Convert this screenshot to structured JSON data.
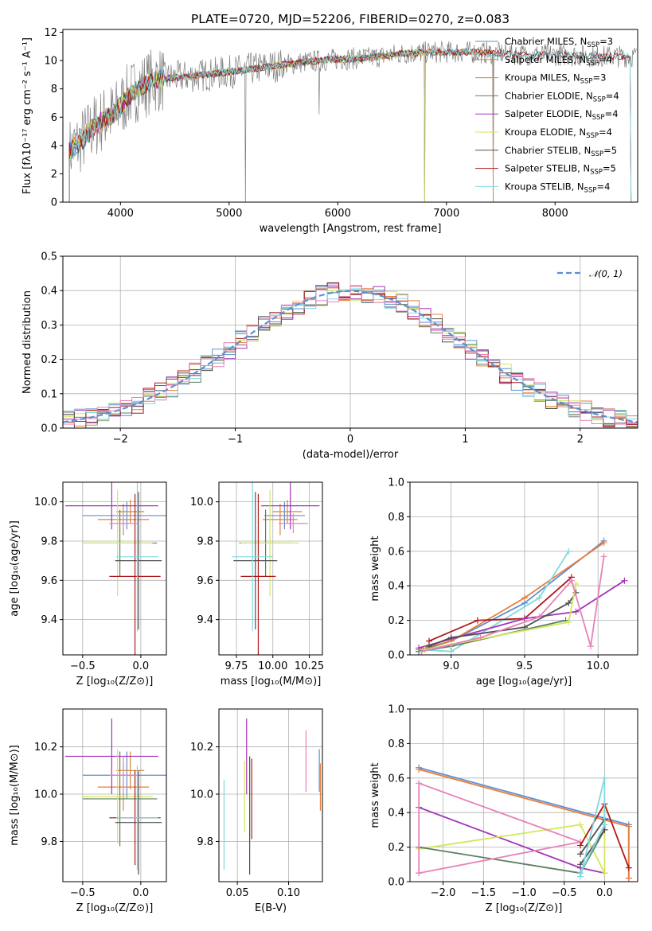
{
  "title": "PLATE=0720, MJD=52206, FIBERID=0270, z=0.083",
  "chart_data": [
    {
      "id": "spectrum",
      "type": "line",
      "title": "PLATE=0720, MJD=52206, FIBERID=0270, z=0.083",
      "xlabel": "wavelength [Angstrom, rest frame]",
      "ylabel": "Flux [fλ10⁻¹⁷ erg cm⁻² s⁻¹ A⁻¹]",
      "xlim": [
        3470,
        8760
      ],
      "ylim": [
        0,
        12.2
      ],
      "xticks": [
        4000,
        5000,
        6000,
        7000,
        8000
      ],
      "yticks": [
        0,
        2,
        4,
        6,
        8,
        10,
        12
      ],
      "grid": false,
      "legend_position": "upper right",
      "data_color": "#808080",
      "continuum": [
        [
          3530,
          3.6
        ],
        [
          3650,
          4.4
        ],
        [
          3750,
          5.3
        ],
        [
          3850,
          5.9
        ],
        [
          3950,
          6.3
        ],
        [
          4050,
          7.3
        ],
        [
          4150,
          8.0
        ],
        [
          4300,
          8.6
        ],
        [
          4500,
          8.8
        ],
        [
          4800,
          9.0
        ],
        [
          5100,
          9.3
        ],
        [
          5400,
          9.6
        ],
        [
          5700,
          9.9
        ],
        [
          6000,
          10.1
        ],
        [
          6300,
          10.2
        ],
        [
          6600,
          10.5
        ],
        [
          6900,
          10.6
        ],
        [
          7200,
          10.6
        ],
        [
          7500,
          10.5
        ],
        [
          7800,
          10.4
        ],
        [
          8100,
          10.4
        ],
        [
          8400,
          10.3
        ]
      ],
      "series": [
        {
          "name": "Chabrier MILES, N$_{SSP}$=3",
          "label_main": "Chabrier MILES, N",
          "label_sub": "SSP",
          "label_tail": "=3",
          "color": "#5f8dd3",
          "end": 7430
        },
        {
          "name": "Salpeter MILES, N$_{SSP}$=4",
          "label_main": "Salpeter MILES, N",
          "label_sub": "SSP",
          "label_tail": "=4",
          "color": "#e87e3c",
          "end": 7430
        },
        {
          "name": "Kroupa MILES, N$_{SSP}$=3",
          "label_main": "Kroupa MILES, N",
          "label_sub": "SSP",
          "label_tail": "=3",
          "color": "#d0883a",
          "end": 7430
        },
        {
          "name": "Chabrier ELODIE, N$_{SSP}$=4",
          "label_main": "Chabrier ELODIE, N",
          "label_sub": "SSP",
          "label_tail": "=4",
          "color": "#5e8060",
          "end": 6800
        },
        {
          "name": "Salpeter ELODIE, N$_{SSP}$=4",
          "label_main": "Salpeter ELODIE, N",
          "label_sub": "SSP",
          "label_tail": "=4",
          "color": "#a333b8",
          "end": 6800
        },
        {
          "name": "Kroupa ELODIE, N$_{SSP}$=4",
          "label_main": "Kroupa ELODIE, N",
          "label_sub": "SSP",
          "label_tail": "=4",
          "color": "#d2e85a",
          "end": 6800
        },
        {
          "name": "Chabrier STELIB, N$_{SSP}$=5",
          "label_main": "Chabrier STELIB, N",
          "label_sub": "SSP",
          "label_tail": "=5",
          "color": "#505050",
          "end": 8700
        },
        {
          "name": "Salpeter STELIB, N$_{SSP}$=5",
          "label_main": "Salpeter STELIB, N",
          "label_sub": "SSP",
          "label_tail": "=5",
          "color": "#b01818",
          "end": 8700
        },
        {
          "name": "Kroupa STELIB, N$_{SSP}$=4",
          "label_main": "Kroupa STELIB, N",
          "label_sub": "SSP",
          "label_tail": "=4",
          "color": "#7fd8df",
          "end": 8700
        }
      ]
    },
    {
      "id": "residuals",
      "type": "line",
      "xlabel": "(data-model)/error",
      "ylabel": "Normed distribution",
      "xlim": [
        -2.5,
        2.5
      ],
      "ylim": [
        0,
        0.5
      ],
      "xticks": [
        -2,
        -1,
        0,
        1,
        2
      ],
      "yticks": [
        0.0,
        0.1,
        0.2,
        0.3,
        0.4,
        0.5
      ],
      "grid": true,
      "legend_position": "upper right",
      "reference": {
        "name": "𝒩(0, 1)",
        "mean": 0,
        "sigma": 1,
        "color": "#5f8dd3"
      },
      "bin_width": 0.1,
      "colors": [
        "#5f8dd3",
        "#e87e3c",
        "#5e8060",
        "#a333b8",
        "#d2e85a",
        "#505050",
        "#b01818",
        "#7fd8df",
        "#e882b8"
      ]
    },
    {
      "id": "age-vs-z",
      "type": "scatter",
      "xlabel": "Z [log₁₀(Z/Z⊙)]",
      "ylabel": "age  [log₁₀(age/yr)]",
      "xlim": [
        -0.67,
        0.22
      ],
      "ylim": [
        9.22,
        10.1
      ],
      "xticks": [
        -0.5,
        0.0
      ],
      "yticks": [
        9.4,
        9.6,
        9.8,
        10.0
      ],
      "grid": true,
      "points": [
        {
          "color": "#5f8dd3",
          "x": -0.12,
          "xerr": 0.38,
          "y": 9.93,
          "yerr": 0.07
        },
        {
          "color": "#e87e3c",
          "x": -0.15,
          "xerr": 0.22,
          "y": 9.91,
          "yerr": 0.08
        },
        {
          "color": "#d0883a",
          "x": -0.09,
          "xerr": 0.12,
          "y": 9.95,
          "yerr": 0.06
        },
        {
          "color": "#5e8060",
          "x": -0.18,
          "xerr": 0.32,
          "y": 9.79,
          "yerr": 0.17
        },
        {
          "color": "#a333b8",
          "x": -0.25,
          "xerr": 0.4,
          "y": 9.98,
          "yerr": 0.12
        },
        {
          "color": "#d2e85a",
          "x": -0.2,
          "xerr": 0.3,
          "y": 9.79,
          "yerr": 0.27
        },
        {
          "color": "#505050",
          "x": -0.02,
          "xerr": 0.2,
          "y": 9.7,
          "yerr": 0.35
        },
        {
          "color": "#b01818",
          "x": -0.05,
          "xerr": 0.22,
          "y": 9.62,
          "yerr": 0.42
        },
        {
          "color": "#7fd8df",
          "x": -0.03,
          "xerr": 0.18,
          "y": 9.72,
          "yerr": 0.38
        },
        {
          "color": "#e882b8",
          "x": -0.15,
          "xerr": 0.12,
          "y": 9.89,
          "yerr": 0.05
        }
      ]
    },
    {
      "id": "age-vs-mass",
      "type": "scatter",
      "xlabel": "mass [log₁₀(M/M⊙)]",
      "ylabel": "",
      "xlim": [
        9.63,
        10.34
      ],
      "ylim": [
        9.22,
        10.1
      ],
      "xticks": [
        9.75,
        10.0,
        10.25
      ],
      "yticks": [
        9.4,
        9.6,
        9.8,
        10.0
      ],
      "grid": true,
      "points": [
        {
          "color": "#5f8dd3",
          "x": 10.08,
          "xerr": 0.14,
          "y": 9.93,
          "yerr": 0.07
        },
        {
          "color": "#e87e3c",
          "x": 10.05,
          "xerr": 0.12,
          "y": 9.91,
          "yerr": 0.08
        },
        {
          "color": "#d0883a",
          "x": 10.1,
          "xerr": 0.1,
          "y": 9.95,
          "yerr": 0.06
        },
        {
          "color": "#5e8060",
          "x": 9.95,
          "xerr": 0.18,
          "y": 9.79,
          "yerr": 0.17
        },
        {
          "color": "#a333b8",
          "x": 10.12,
          "xerr": 0.2,
          "y": 9.98,
          "yerr": 0.12
        },
        {
          "color": "#d2e85a",
          "x": 9.98,
          "xerr": 0.2,
          "y": 9.79,
          "yerr": 0.27
        },
        {
          "color": "#505050",
          "x": 9.88,
          "xerr": 0.15,
          "y": 9.7,
          "yerr": 0.35
        },
        {
          "color": "#b01818",
          "x": 9.9,
          "xerr": 0.12,
          "y": 9.62,
          "yerr": 0.42
        },
        {
          "color": "#7fd8df",
          "x": 9.86,
          "xerr": 0.14,
          "y": 9.72,
          "yerr": 0.38
        },
        {
          "color": "#e882b8",
          "x": 10.14,
          "xerr": 0.1,
          "y": 9.89,
          "yerr": 0.05
        }
      ]
    },
    {
      "id": "weight-vs-age",
      "type": "line",
      "xlabel": "age  [log₁₀(age/yr)]",
      "ylabel": "mass weight",
      "xlim": [
        8.72,
        10.27
      ],
      "ylim": [
        0,
        1.0
      ],
      "xticks": [
        9.0,
        9.5,
        10.0
      ],
      "yticks": [
        0.0,
        0.2,
        0.4,
        0.6,
        0.8,
        1.0
      ],
      "grid": true,
      "series": [
        {
          "color": "#5f8dd3",
          "points": [
            [
              8.78,
              0.02
            ],
            [
              9.0,
              0.08
            ],
            [
              9.5,
              0.3
            ],
            [
              10.04,
              0.66
            ]
          ]
        },
        {
          "color": "#e87e3c",
          "points": [
            [
              8.78,
              0.03
            ],
            [
              9.0,
              0.08
            ],
            [
              9.5,
              0.33
            ],
            [
              10.04,
              0.65
            ]
          ]
        },
        {
          "color": "#7fd8df",
          "points": [
            [
              8.8,
              0.03
            ],
            [
              9.0,
              0.02
            ],
            [
              9.6,
              0.33
            ],
            [
              9.8,
              0.6
            ]
          ]
        },
        {
          "color": "#b01818",
          "points": [
            [
              8.85,
              0.08
            ],
            [
              9.18,
              0.2
            ],
            [
              9.5,
              0.21
            ],
            [
              9.82,
              0.45
            ]
          ]
        },
        {
          "color": "#a333b8",
          "points": [
            [
              8.78,
              0.04
            ],
            [
              9.5,
              0.21
            ],
            [
              9.85,
              0.25
            ],
            [
              10.18,
              0.43
            ]
          ]
        },
        {
          "color": "#505050",
          "points": [
            [
              8.85,
              0.05
            ],
            [
              9.0,
              0.1
            ],
            [
              9.5,
              0.16
            ],
            [
              9.8,
              0.3
            ],
            [
              9.85,
              0.36
            ]
          ]
        },
        {
          "color": "#5e8060",
          "points": [
            [
              8.78,
              0.02
            ],
            [
              9.0,
              0.05
            ],
            [
              9.78,
              0.2
            ]
          ]
        },
        {
          "color": "#d2e85a",
          "points": [
            [
              8.82,
              0.03
            ],
            [
              9.0,
              0.06
            ],
            [
              9.8,
              0.19
            ],
            [
              9.85,
              0.41
            ]
          ]
        },
        {
          "color": "#e882b8",
          "points": [
            [
              8.8,
              0.02
            ],
            [
              9.2,
              0.1
            ],
            [
              9.6,
              0.22
            ],
            [
              9.82,
              0.43
            ],
            [
              9.95,
              0.05
            ],
            [
              10.04,
              0.57
            ]
          ]
        }
      ]
    },
    {
      "id": "mass-vs-z",
      "type": "scatter",
      "xlabel": "Z [log₁₀(Z/Z⊙)]",
      "ylabel": "mass [log₁₀(M/M⊙)]",
      "xlim": [
        -0.67,
        0.22
      ],
      "ylim": [
        9.63,
        10.36
      ],
      "xticks": [
        -0.5,
        0.0
      ],
      "yticks": [
        9.8,
        10.0,
        10.2
      ],
      "grid": true,
      "points": [
        {
          "color": "#5f8dd3",
          "x": -0.12,
          "xerr": 0.38,
          "y": 10.08,
          "yerr": 0.1
        },
        {
          "color": "#e87e3c",
          "x": -0.15,
          "xerr": 0.22,
          "y": 10.03,
          "yerr": 0.1
        },
        {
          "color": "#d0883a",
          "x": -0.09,
          "xerr": 0.12,
          "y": 10.1,
          "yerr": 0.08
        },
        {
          "color": "#5e8060",
          "x": -0.18,
          "xerr": 0.32,
          "y": 9.98,
          "yerr": 0.2
        },
        {
          "color": "#a333b8",
          "x": -0.25,
          "xerr": 0.4,
          "y": 10.16,
          "yerr": 0.16
        },
        {
          "color": "#d2e85a",
          "x": -0.2,
          "xerr": 0.3,
          "y": 9.99,
          "yerr": 0.2
        },
        {
          "color": "#505050",
          "x": -0.02,
          "xerr": 0.2,
          "y": 9.88,
          "yerr": 0.22
        },
        {
          "color": "#b01818",
          "x": -0.05,
          "xerr": 0.22,
          "y": 9.9,
          "yerr": 0.2
        },
        {
          "color": "#7fd8df",
          "x": -0.03,
          "xerr": 0.18,
          "y": 9.9,
          "yerr": 0.22
        },
        {
          "color": "#e882b8",
          "x": -0.15,
          "xerr": 0.12,
          "y": 10.08,
          "yerr": 0.08
        }
      ]
    },
    {
      "id": "mass-vs-ebv",
      "type": "scatter",
      "xlabel": "E(B-V)",
      "ylabel": "",
      "xlim": [
        0.032,
        0.133
      ],
      "ylim": [
        9.63,
        10.36
      ],
      "xticks": [
        0.05,
        0.1
      ],
      "yticks": [
        9.8,
        10.0,
        10.2
      ],
      "grid": true,
      "points": [
        {
          "color": "#7fd8df",
          "x": 0.037,
          "xerr": 0.0,
          "y": 9.87,
          "yerr": 0.19
        },
        {
          "color": "#d2e85a",
          "x": 0.057,
          "xerr": 0.0,
          "y": 9.99,
          "yerr": 0.15
        },
        {
          "color": "#a333b8",
          "x": 0.059,
          "xerr": 0.0,
          "y": 10.16,
          "yerr": 0.16
        },
        {
          "color": "#505050",
          "x": 0.062,
          "xerr": 0.0,
          "y": 9.91,
          "yerr": 0.25
        },
        {
          "color": "#b01818",
          "x": 0.064,
          "xerr": 0.0,
          "y": 9.98,
          "yerr": 0.17
        },
        {
          "color": "#e882b8",
          "x": 0.117,
          "xerr": 0.0,
          "y": 10.14,
          "yerr": 0.13
        },
        {
          "color": "#5f8dd3",
          "x": 0.13,
          "xerr": 0.0,
          "y": 10.1,
          "yerr": 0.09
        },
        {
          "color": "#e87e3c",
          "x": 0.131,
          "xerr": 0.0,
          "y": 10.03,
          "yerr": 0.1
        }
      ]
    },
    {
      "id": "weight-vs-z",
      "type": "line",
      "xlabel": "Z [log₁₀(Z/Z⊙)]",
      "ylabel": "mass weight",
      "xlim": [
        -2.41,
        0.41
      ],
      "ylim": [
        0,
        1.0
      ],
      "xticks": [
        -2.0,
        -1.5,
        -1.0,
        -0.5,
        0.0
      ],
      "yticks": [
        0.0,
        0.2,
        0.4,
        0.6,
        0.8,
        1.0
      ],
      "grid": true,
      "series": [
        {
          "color": "#5f8dd3",
          "points": [
            [
              -2.3,
              0.66
            ],
            [
              0.3,
              0.33
            ],
            [
              0.3,
              0.02
            ]
          ]
        },
        {
          "color": "#e87e3c",
          "points": [
            [
              -2.3,
              0.65
            ],
            [
              0.3,
              0.32
            ],
            [
              0.3,
              0.02
            ]
          ]
        },
        {
          "color": "#a333b8",
          "points": [
            [
              -2.3,
              0.43
            ],
            [
              -0.3,
              0.08
            ],
            [
              0.0,
              0.05
            ]
          ]
        },
        {
          "color": "#d2e85a",
          "points": [
            [
              -2.3,
              0.19
            ],
            [
              -0.3,
              0.33
            ],
            [
              0.0,
              0.05
            ],
            [
              0.0,
              0.41
            ]
          ]
        },
        {
          "color": "#5e8060",
          "points": [
            [
              -2.3,
              0.2
            ],
            [
              -0.3,
              0.05
            ],
            [
              0.0,
              0.3
            ]
          ]
        },
        {
          "color": "#e882b8",
          "points": [
            [
              -2.3,
              0.05
            ],
            [
              -0.3,
              0.23
            ],
            [
              -2.3,
              0.57
            ],
            [
              -2.3,
              0.05
            ]
          ]
        },
        {
          "color": "#505050",
          "points": [
            [
              -0.3,
              0.16
            ],
            [
              0.0,
              0.36
            ],
            [
              0.0,
              0.3
            ],
            [
              -0.3,
              0.1
            ]
          ]
        },
        {
          "color": "#b01818",
          "points": [
            [
              -0.3,
              0.21
            ],
            [
              0.0,
              0.45
            ],
            [
              0.3,
              0.08
            ]
          ]
        },
        {
          "color": "#7fd8df",
          "points": [
            [
              -0.3,
              0.03
            ],
            [
              0.0,
              0.6
            ],
            [
              0.0,
              0.33
            ],
            [
              -0.3,
              0.05
            ]
          ]
        }
      ]
    }
  ]
}
